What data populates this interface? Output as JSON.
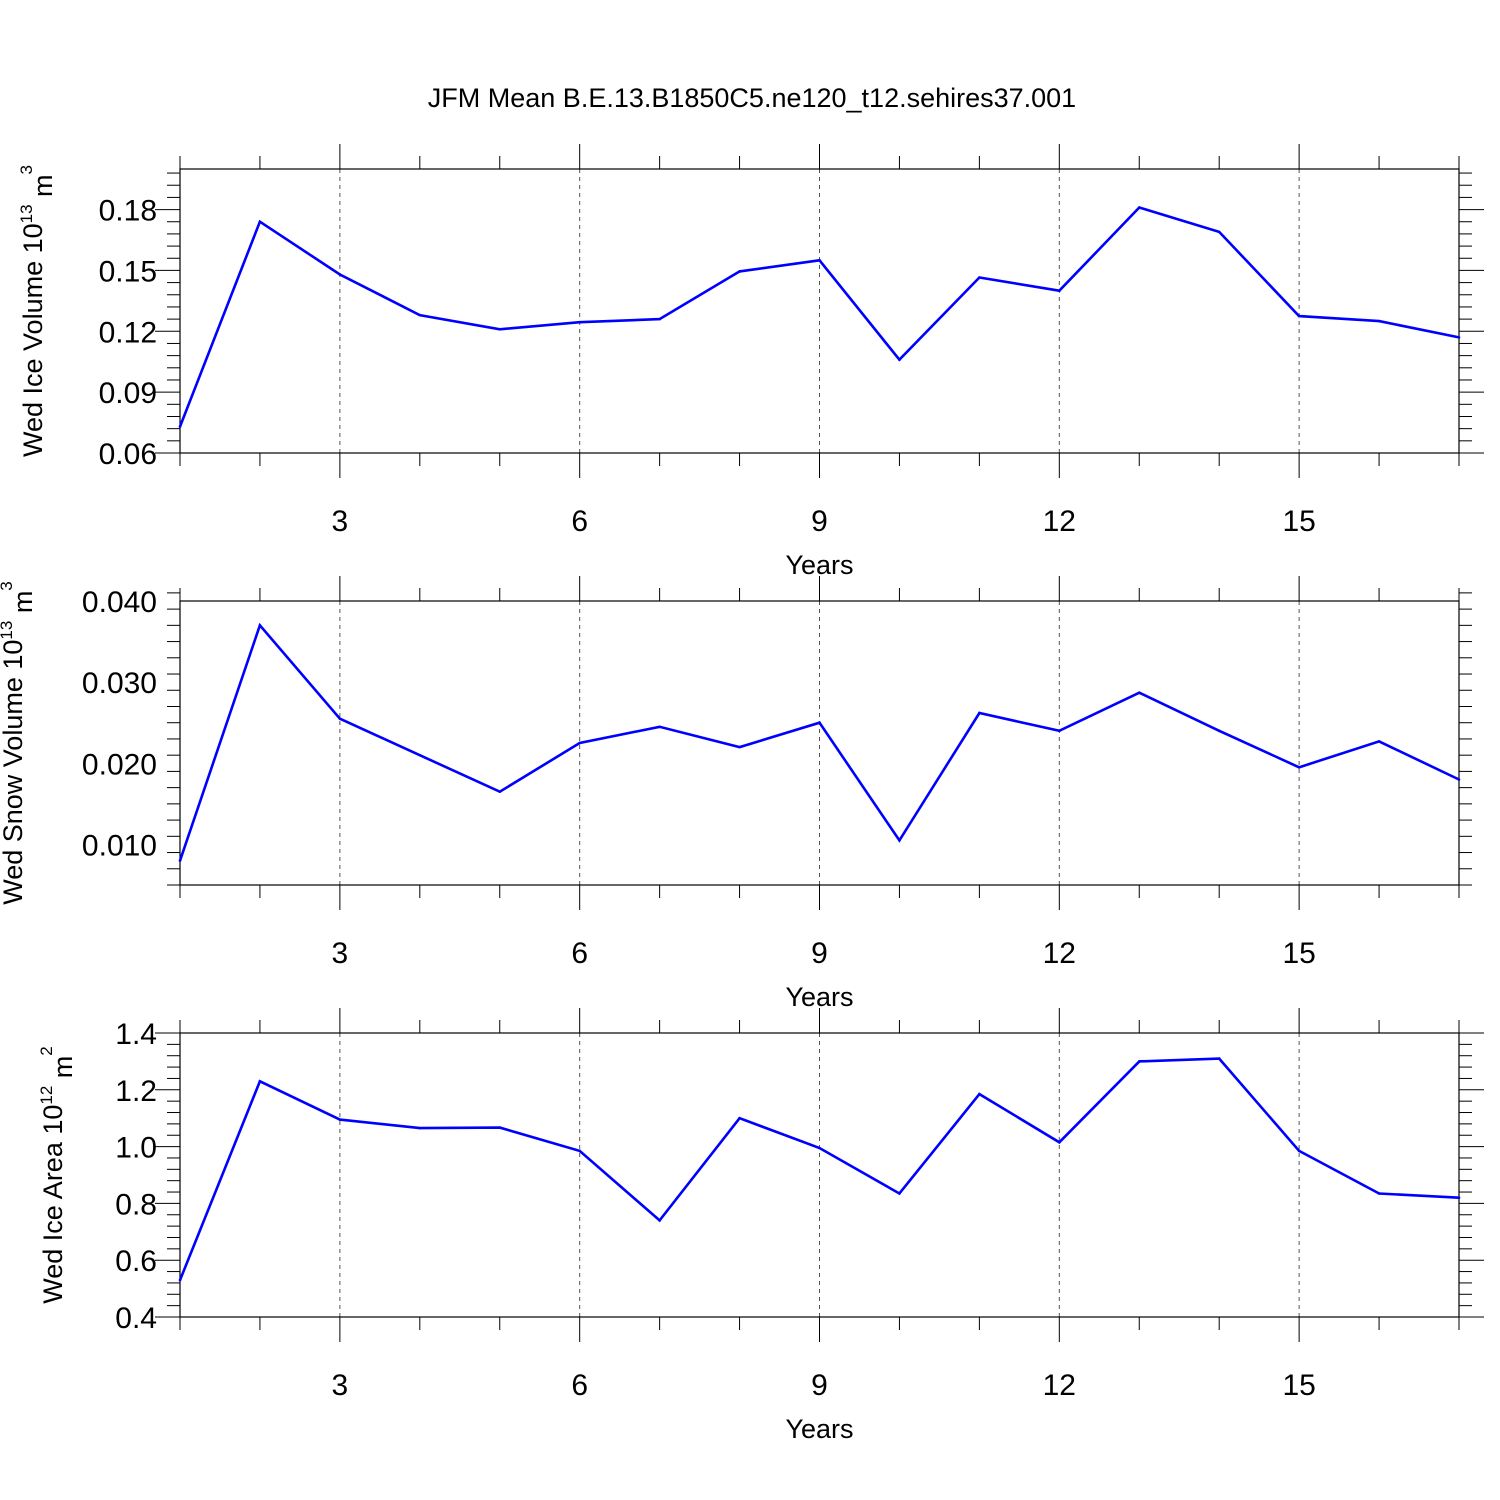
{
  "title": "JFM Mean B.E.13.B1850C5.ne120_t12.sehires37.001",
  "colors": {
    "line": "#0000ff",
    "axis": "#000000",
    "grid": "#555555",
    "background": "#ffffff"
  },
  "chart_data": [
    {
      "type": "line",
      "xlabel": "Years",
      "ylabel": {
        "text": "Wed Ice Volume 10",
        "sup": "13",
        "unit": " m",
        "unit_sup": "3"
      },
      "xlim": [
        1,
        17
      ],
      "ylim": [
        0.06,
        0.2
      ],
      "xticks": [
        3,
        6,
        9,
        12,
        15
      ],
      "xtick_labels": [
        "3",
        "6",
        "9",
        "12",
        "15"
      ],
      "yticks": [
        0.06,
        0.09,
        0.12,
        0.15,
        0.18
      ],
      "ytick_labels": [
        "0.06",
        "0.09",
        "0.12",
        "0.15",
        "0.18"
      ],
      "x": [
        1,
        2,
        3,
        4,
        5,
        6,
        7,
        8,
        9,
        10,
        11,
        12,
        13,
        14,
        15,
        16,
        17
      ],
      "series": [
        {
          "name": "Wed Ice Volume",
          "color": "#0000ff",
          "values": [
            0.073,
            0.174,
            0.148,
            0.128,
            0.121,
            0.1245,
            0.126,
            0.1495,
            0.155,
            0.106,
            0.1465,
            0.14,
            0.181,
            0.169,
            0.1275,
            0.125,
            0.117
          ]
        }
      ]
    },
    {
      "type": "line",
      "xlabel": "Years",
      "ylabel": {
        "text": "Wed Snow Volume 10",
        "sup": "13",
        "unit": " m",
        "unit_sup": "3"
      },
      "xlim": [
        1,
        17
      ],
      "ylim": [
        0.005,
        0.04
      ],
      "xticks": [
        3,
        6,
        9,
        12,
        15
      ],
      "xtick_labels": [
        "3",
        "6",
        "9",
        "12",
        "15"
      ],
      "yticks": [
        0.01,
        0.02,
        0.03,
        0.04
      ],
      "ytick_labels": [
        "0.010",
        "0.020",
        "0.030",
        "0.040"
      ],
      "x": [
        1,
        2,
        3,
        4,
        5,
        6,
        7,
        8,
        9,
        10,
        11,
        12,
        13,
        14,
        15,
        16,
        17
      ],
      "series": [
        {
          "name": "Wed Snow Volume",
          "color": "#0000ff",
          "values": [
            0.008,
            0.037,
            0.0255,
            0.021,
            0.0165,
            0.0225,
            0.0245,
            0.022,
            0.025,
            0.0105,
            0.0262,
            0.024,
            0.0287,
            0.024,
            0.0195,
            0.0227,
            0.018
          ]
        }
      ]
    },
    {
      "type": "line",
      "xlabel": "Years",
      "ylabel": {
        "text": "Wed Ice Area 10",
        "sup": "12",
        "unit": " m",
        "unit_sup": "2"
      },
      "xlim": [
        1,
        17
      ],
      "ylim": [
        0.4,
        1.4
      ],
      "xticks": [
        3,
        6,
        9,
        12,
        15
      ],
      "xtick_labels": [
        "3",
        "6",
        "9",
        "12",
        "15"
      ],
      "yticks": [
        0.4,
        0.6,
        0.8,
        1.0,
        1.2,
        1.4
      ],
      "ytick_labels": [
        "0.4",
        "0.6",
        "0.8",
        "1.0",
        "1.2",
        "1.4"
      ],
      "x": [
        1,
        2,
        3,
        4,
        5,
        6,
        7,
        8,
        9,
        10,
        11,
        12,
        13,
        14,
        15,
        16,
        17
      ],
      "series": [
        {
          "name": "Wed Ice Area",
          "color": "#0000ff",
          "values": [
            0.53,
            1.23,
            1.095,
            1.065,
            1.067,
            0.985,
            0.74,
            1.1,
            0.995,
            0.835,
            1.185,
            1.015,
            1.3,
            1.31,
            0.985,
            0.835,
            0.82
          ]
        }
      ]
    }
  ]
}
